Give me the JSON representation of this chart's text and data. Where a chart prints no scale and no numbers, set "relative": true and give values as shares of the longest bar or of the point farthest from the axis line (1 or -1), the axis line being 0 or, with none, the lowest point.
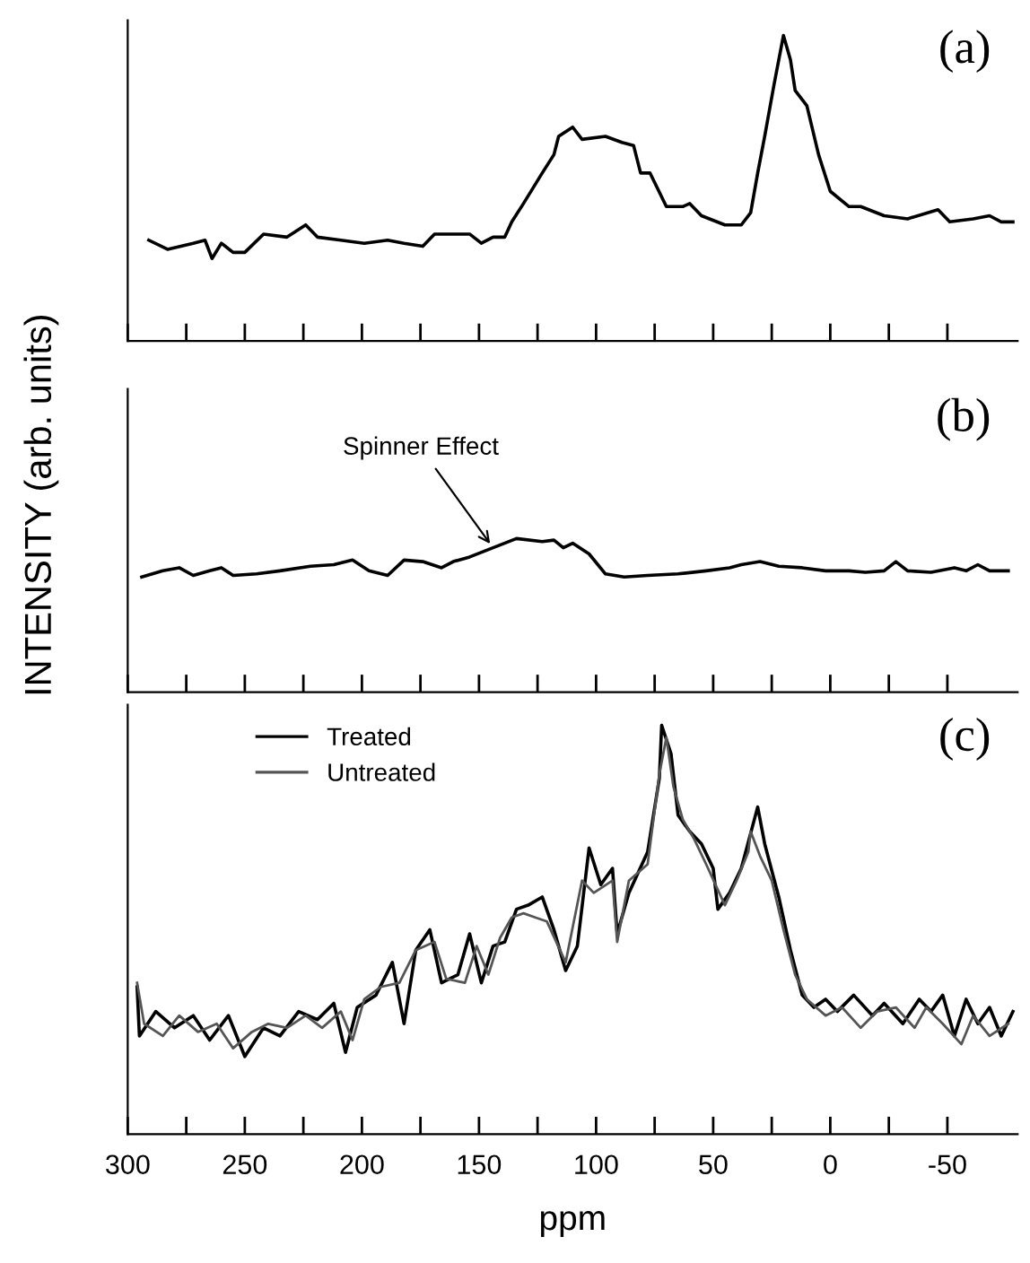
{
  "chart_data": [
    {
      "type": "line",
      "title": "(a)",
      "relative": true,
      "xlim": [
        300,
        -80
      ],
      "xticks": [
        300,
        {
          "value": 275,
          "label": null
        },
        250,
        {
          "value": 225,
          "label": null
        },
        200,
        {
          "value": 175,
          "label": null
        },
        150,
        {
          "value": 125,
          "label": null
        },
        100,
        {
          "value": 75,
          "label": null
        },
        50,
        {
          "value": 25,
          "label": null
        },
        0,
        {
          "value": -25,
          "label": null
        },
        -50
      ],
      "tick_labels": false,
      "series": [
        {
          "color": "#000000",
          "x": [
            291,
            283,
            272,
            267,
            264,
            260,
            255,
            250,
            242,
            232,
            224,
            219,
            209,
            199,
            189,
            182,
            174,
            169,
            154,
            149,
            144,
            139,
            136,
            131,
            123,
            118,
            116,
            110,
            106,
            96,
            89,
            84,
            81,
            77,
            70,
            63,
            60,
            55,
            45,
            38,
            34,
            31,
            28,
            24,
            20,
            17,
            15,
            10,
            5,
            0,
            -8,
            -13,
            -23,
            -33,
            -46,
            -51,
            -61,
            -68,
            -73,
            -78
          ],
          "values": [
            0.33,
            0.3,
            0.32,
            0.33,
            0.27,
            0.32,
            0.29,
            0.29,
            0.35,
            0.34,
            0.38,
            0.34,
            0.33,
            0.32,
            0.33,
            0.32,
            0.31,
            0.35,
            0.35,
            0.32,
            0.34,
            0.34,
            0.39,
            0.45,
            0.55,
            0.61,
            0.67,
            0.7,
            0.66,
            0.67,
            0.65,
            0.64,
            0.55,
            0.55,
            0.44,
            0.44,
            0.45,
            0.41,
            0.38,
            0.38,
            0.42,
            0.55,
            0.67,
            0.84,
            1.0,
            0.92,
            0.82,
            0.77,
            0.61,
            0.49,
            0.44,
            0.44,
            0.41,
            0.4,
            0.43,
            0.39,
            0.4,
            0.41,
            0.39,
            0.39
          ]
        }
      ]
    },
    {
      "type": "line",
      "title": "(b)",
      "ylabel": "INTENSITY (arb. units)",
      "relative": true,
      "xlim": [
        300,
        -80
      ],
      "xticks": [
        300,
        {
          "value": 275,
          "label": null
        },
        250,
        {
          "value": 225,
          "label": null
        },
        200,
        {
          "value": 175,
          "label": null
        },
        150,
        {
          "value": 125,
          "label": null
        },
        100,
        {
          "value": 75,
          "label": null
        },
        50,
        {
          "value": 25,
          "label": null
        },
        0,
        {
          "value": -25,
          "label": null
        },
        -50
      ],
      "tick_labels": false,
      "annotations": [
        {
          "text": "Spinner Effect",
          "x": 144,
          "y": 0.94
        }
      ],
      "series": [
        {
          "color": "#000000",
          "x": [
            294,
            285,
            278,
            272,
            265,
            260,
            255,
            245,
            235,
            222,
            212,
            204,
            197,
            189,
            182,
            174,
            166,
            161,
            154,
            144,
            134,
            123,
            118,
            114,
            110,
            103,
            96,
            88,
            78,
            65,
            53,
            43,
            38,
            30,
            22,
            12,
            2,
            -8,
            -15,
            -23,
            -28,
            -33,
            -43,
            -53,
            -58,
            -63,
            -68,
            -76
          ],
          "values": [
            0.75,
            0.79,
            0.81,
            0.76,
            0.79,
            0.81,
            0.76,
            0.77,
            0.79,
            0.82,
            0.83,
            0.86,
            0.79,
            0.76,
            0.86,
            0.85,
            0.81,
            0.85,
            0.88,
            0.94,
            1.0,
            0.98,
            0.99,
            0.94,
            0.97,
            0.9,
            0.77,
            0.75,
            0.76,
            0.77,
            0.79,
            0.81,
            0.83,
            0.85,
            0.82,
            0.81,
            0.79,
            0.79,
            0.78,
            0.79,
            0.85,
            0.79,
            0.78,
            0.81,
            0.79,
            0.83,
            0.79,
            0.79
          ]
        }
      ]
    },
    {
      "type": "line",
      "title": "(c)",
      "xlabel": "ppm",
      "relative": true,
      "xlim": [
        300,
        -80
      ],
      "xticks": [
        300,
        {
          "value": 275,
          "label": null
        },
        250,
        {
          "value": 225,
          "label": null
        },
        200,
        {
          "value": 175,
          "label": null
        },
        150,
        {
          "value": 125,
          "label": null
        },
        100,
        {
          "value": 75,
          "label": null
        },
        50,
        {
          "value": 25,
          "label": null
        },
        0,
        {
          "value": -25,
          "label": null
        },
        -50
      ],
      "tick_labels": "x",
      "legend": "top left",
      "series": [
        {
          "name": "Treated",
          "color": "#000000",
          "x": [
            296,
            295,
            288,
            280,
            272,
            265,
            257,
            250,
            242,
            235,
            227,
            219,
            212,
            207,
            202,
            194,
            187,
            182,
            177,
            171,
            166,
            159,
            154,
            149,
            144,
            139,
            134,
            129,
            123,
            118,
            113,
            108,
            103,
            98,
            93,
            91,
            86,
            78,
            73,
            72,
            68,
            65,
            60,
            55,
            50,
            48,
            43,
            38,
            31,
            28,
            22,
            17,
            12,
            7,
            2,
            -3,
            -10,
            -18,
            -23,
            -31,
            -38,
            -43,
            -48,
            -53,
            -58,
            -63,
            -68,
            -73,
            -78
          ],
          "values": [
            0.36,
            0.24,
            0.3,
            0.26,
            0.29,
            0.23,
            0.29,
            0.19,
            0.26,
            0.24,
            0.3,
            0.28,
            0.32,
            0.2,
            0.31,
            0.34,
            0.42,
            0.27,
            0.45,
            0.5,
            0.37,
            0.39,
            0.49,
            0.37,
            0.46,
            0.47,
            0.55,
            0.56,
            0.58,
            0.5,
            0.4,
            0.46,
            0.7,
            0.61,
            0.65,
            0.49,
            0.59,
            0.69,
            0.87,
            1.0,
            0.93,
            0.78,
            0.74,
            0.71,
            0.65,
            0.55,
            0.59,
            0.65,
            0.8,
            0.71,
            0.58,
            0.45,
            0.34,
            0.31,
            0.33,
            0.3,
            0.34,
            0.29,
            0.32,
            0.27,
            0.33,
            0.3,
            0.34,
            0.24,
            0.33,
            0.27,
            0.31,
            0.24,
            0.3
          ]
        },
        {
          "name": "Untreated",
          "color": "#555555",
          "x": [
            296,
            293,
            285,
            278,
            270,
            262,
            255,
            247,
            240,
            232,
            224,
            217,
            209,
            204,
            199,
            192,
            184,
            177,
            169,
            164,
            156,
            151,
            146,
            141,
            136,
            131,
            126,
            121,
            113,
            106,
            101,
            93,
            91,
            86,
            78,
            73,
            70,
            67,
            63,
            58,
            53,
            45,
            40,
            35,
            34,
            30,
            25,
            20,
            15,
            10,
            2,
            -5,
            -13,
            -20,
            -28,
            -36,
            -41,
            -48,
            -56,
            -61,
            -68,
            -76
          ],
          "values": [
            0.37,
            0.27,
            0.24,
            0.29,
            0.25,
            0.27,
            0.21,
            0.25,
            0.27,
            0.26,
            0.29,
            0.26,
            0.3,
            0.23,
            0.33,
            0.36,
            0.37,
            0.45,
            0.47,
            0.38,
            0.37,
            0.46,
            0.39,
            0.48,
            0.53,
            0.54,
            0.53,
            0.52,
            0.42,
            0.62,
            0.59,
            0.62,
            0.47,
            0.62,
            0.66,
            0.88,
            0.97,
            0.85,
            0.77,
            0.72,
            0.66,
            0.56,
            0.62,
            0.69,
            0.74,
            0.68,
            0.62,
            0.5,
            0.39,
            0.33,
            0.29,
            0.31,
            0.26,
            0.3,
            0.31,
            0.26,
            0.31,
            0.27,
            0.22,
            0.29,
            0.24,
            0.27
          ]
        }
      ]
    }
  ]
}
